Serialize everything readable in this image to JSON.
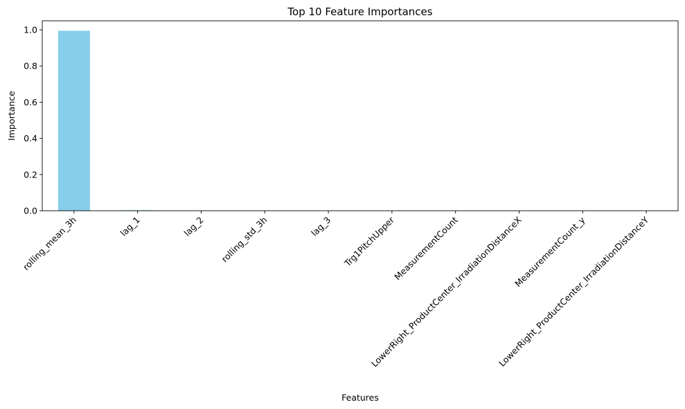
{
  "chart_data": {
    "type": "bar",
    "title": "Top 10 Feature Importances",
    "xlabel": "Features",
    "ylabel": "Importance",
    "categories": [
      "rolling_mean_3h",
      "lag_1",
      "lag_2",
      "rolling_std_3h",
      "lag_3",
      "Trg1PitchUpper",
      "MeasurementCount",
      "LowerRight_ProductCenter_IrradiationDistanceX",
      "MeasurementCount_y",
      "LowerRight_ProductCenter_IrradiationDistanceY"
    ],
    "values": [
      0.995,
      0.003,
      0.0005,
      0.0004,
      0.0003,
      0.0002,
      0.0002,
      0.0001,
      0.0001,
      0.0001
    ],
    "ylim": [
      0,
      1.05
    ],
    "yticks": [
      "0.0",
      "0.2",
      "0.4",
      "0.6",
      "0.8",
      "1.0"
    ],
    "bar_color": "#87CEEB",
    "grid": false,
    "legend": false
  }
}
